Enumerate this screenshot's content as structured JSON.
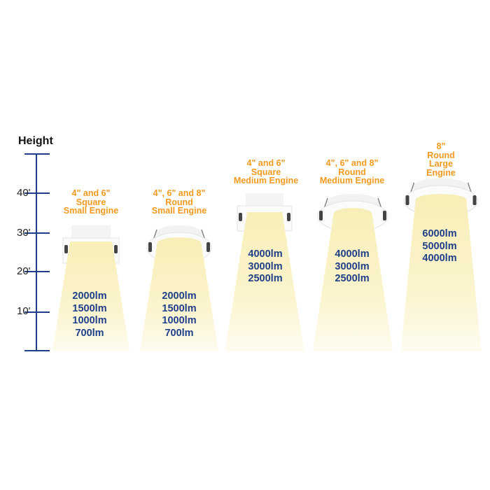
{
  "axis": {
    "title": "Height",
    "ticks": [
      "40'",
      "30'",
      "20'",
      "10'"
    ],
    "color": "#1f3f8a"
  },
  "products": [
    {
      "label": [
        "4\" and 6\"",
        "Square",
        "Small Engine"
      ],
      "shape": "square",
      "lumens": [
        "2000lm",
        "1500lm",
        "1000lm",
        "700lm"
      ]
    },
    {
      "label": [
        "4\", 6\" and 8\"",
        "Round",
        "Small Engine"
      ],
      "shape": "round",
      "lumens": [
        "2000lm",
        "1500lm",
        "1000lm",
        "700lm"
      ]
    },
    {
      "label": [
        "4\" and 6\"",
        "Square",
        "Medium Engine"
      ],
      "shape": "square",
      "lumens": [
        "4000lm",
        "3000lm",
        "2500lm"
      ]
    },
    {
      "label": [
        "4\", 6\" and 8\"",
        "Round",
        "Medium Engine"
      ],
      "shape": "round",
      "lumens": [
        "4000lm",
        "3000lm",
        "2500lm"
      ]
    },
    {
      "label": [
        "8\"",
        "Round",
        "Large Engine"
      ],
      "shape": "round",
      "lumens": [
        "6000lm",
        "5000lm",
        "4000lm"
      ]
    }
  ],
  "colors": {
    "label": "#f39a1e",
    "lumens": "#1f3f8a",
    "beam": "#fbf3c4"
  }
}
